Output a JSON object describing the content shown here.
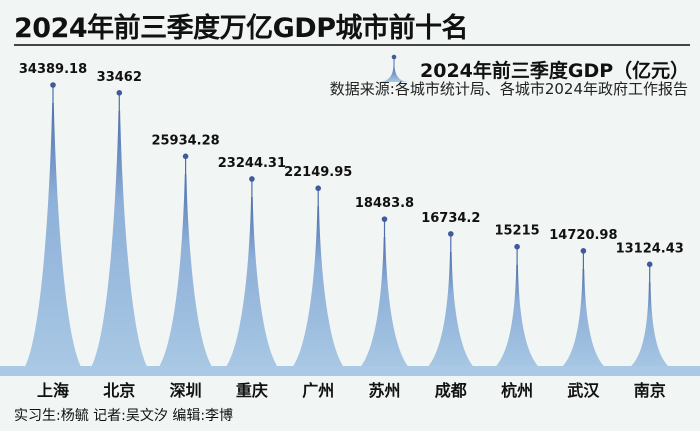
{
  "header": {
    "title": "2024年前三季度万亿GDP城市前十名",
    "legend": "2024年前三季度GDP（亿元）",
    "source": "数据来源:各城市统计局、各城市2024年政府工作报告"
  },
  "footer": {
    "credits": "实习生:杨毓  记者:吴文汐  编辑:李博"
  },
  "colors": {
    "peak_top": "#4d6fae",
    "peak_base": "#a9c9e5",
    "dot": "#3f5a9c"
  },
  "chart_data": {
    "type": "bar",
    "title": "2024年前三季度万亿GDP城市前十名",
    "ylabel": "2024年前三季度GDP（亿元）",
    "categories": [
      "上海",
      "北京",
      "深圳",
      "重庆",
      "广州",
      "苏州",
      "成都",
      "杭州",
      "武汉",
      "南京"
    ],
    "values": [
      34389.18,
      33462,
      25934.28,
      23244.31,
      22149.95,
      18483.8,
      16734.2,
      15215,
      14720.98,
      13124.43
    ],
    "value_labels": [
      "34389.18",
      "33462",
      "25934.28",
      "23244.31",
      "22149.95",
      "18483.8",
      "16734.2",
      "15215",
      "14720.98",
      "13124.43"
    ],
    "ylim": [
      0,
      34389.18
    ],
    "grid": false
  }
}
